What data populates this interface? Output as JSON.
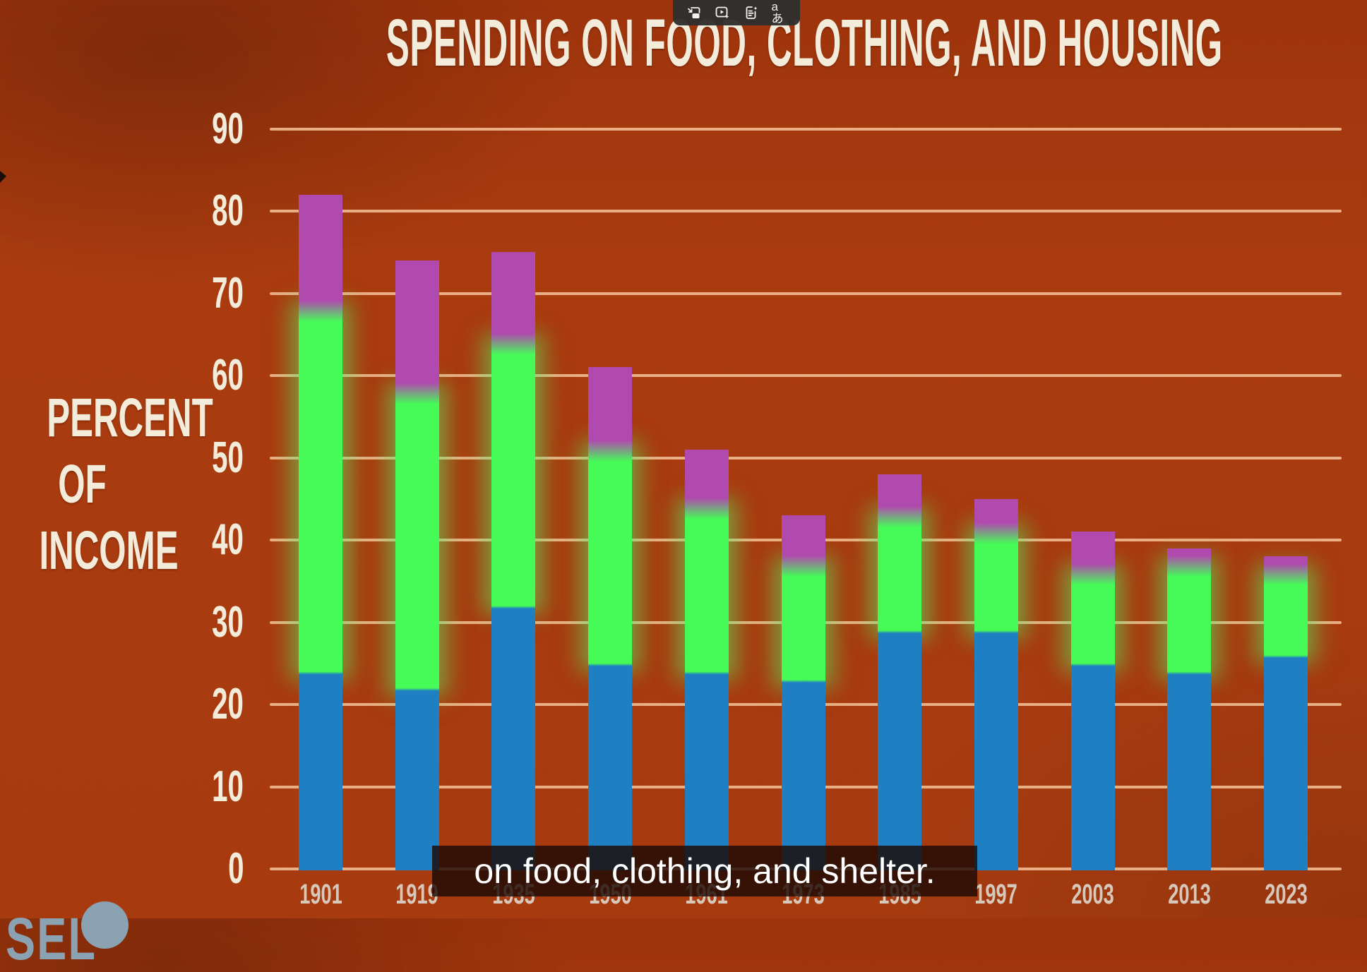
{
  "video_overlay": {
    "toolbar_icons": [
      {
        "name": "picture-in-picture"
      },
      {
        "name": "video-play-enhance"
      },
      {
        "name": "transcript-notes"
      },
      {
        "name": "translate",
        "glyph": "aあ"
      }
    ],
    "caption": "on food, clothing, and shelter."
  },
  "watermark": {
    "text": "SEL"
  },
  "chart_data": {
    "type": "bar",
    "stacked": true,
    "title": "SPENDING ON FOOD, CLOTHING, AND HOUSING",
    "ylabel_lines": [
      "PERCENT",
      "OF",
      "INCOME"
    ],
    "categories": [
      "1901",
      "1919",
      "1935",
      "1950",
      "1961",
      "1973",
      "1985",
      "1997",
      "2003",
      "2013",
      "2023"
    ],
    "series": [
      {
        "name": "blue-bottom-segment",
        "color": "#1e80c2",
        "values": [
          24,
          22,
          32,
          25,
          24,
          23,
          29,
          29,
          25,
          24,
          26
        ]
      },
      {
        "name": "green-middle-segment",
        "color": "#46fa58",
        "values": [
          44,
          36,
          32,
          26,
          20,
          14,
          14,
          12,
          11,
          13,
          10
        ]
      },
      {
        "name": "magenta-top-segment",
        "color": "#b04aae",
        "values": [
          14,
          16,
          11,
          10,
          7,
          6,
          5,
          4,
          5,
          2,
          2
        ]
      }
    ],
    "stack_totals": [
      82,
      74,
      75,
      61,
      51,
      43,
      48,
      45,
      41,
      39,
      38
    ],
    "ylim": [
      0,
      90
    ],
    "ytick_step": 10,
    "yticks": [
      "0",
      "10",
      "20",
      "30",
      "40",
      "50",
      "60",
      "70",
      "80",
      "90"
    ],
    "grid": true,
    "legend": "none",
    "colors": {
      "background": "#a93b0f",
      "gridline": "#f0b88e",
      "axis_text": "#f3ecda",
      "year_text": "#d6c8ba",
      "caption_bg": "rgba(28,10,4,0.82)",
      "caption_text": "#ffffff",
      "toolbar_bg": "rgba(47,47,47,0.96)",
      "watermark": "#8ba2b3"
    }
  }
}
